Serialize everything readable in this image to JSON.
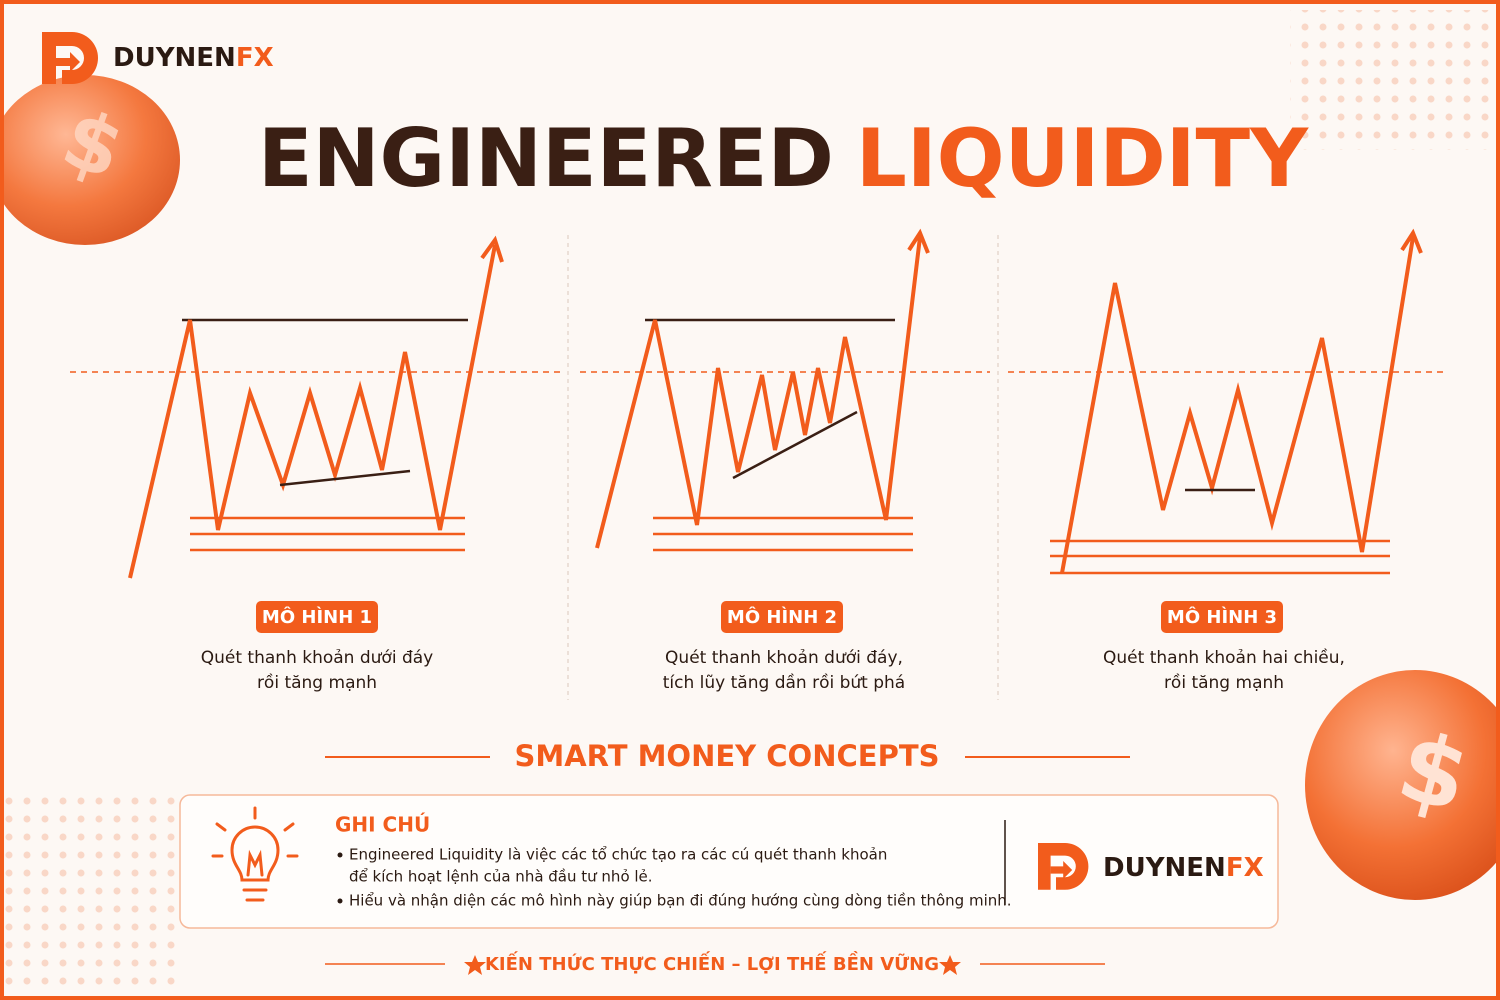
{
  "brand": {
    "name_main": "DUYNEN",
    "name_accent": "FX"
  },
  "title": {
    "part_dark": "ENGINEERED",
    "part_accent": "LIQUIDITY"
  },
  "panels": [
    {
      "label": "MÔ HÌNH 1",
      "description": [
        "Quét thanh khoản dưới đáy",
        "rồi tăng mạnh"
      ]
    },
    {
      "label": "MÔ HÌNH 2",
      "description": [
        "Quét thanh khoản dưới đáy,",
        "tích lũy tăng dần rồi bứt phá"
      ]
    },
    {
      "label": "MÔ HÌNH 3",
      "description": [
        "Quét thanh khoản hai chiều,",
        "rồi tăng mạnh"
      ]
    }
  ],
  "section_title": "SMART MONEY CONCEPTS",
  "note": {
    "title": "GHI CHÚ",
    "bullets": [
      [
        "Engineered Liquidity là việc các tổ chức tạo ra các cú quét thanh khoản",
        "để kích hoạt lệnh của nhà đầu tư nhỏ lẻ."
      ],
      [
        "Hiểu và nhận diện các mô hình này giúp bạn đi đúng hướng cùng dòng tiền thông minh."
      ]
    ]
  },
  "footer": "KIẾN THỨC THỰC CHIẾN – LỢI THẾ BỀN VỮNG"
}
